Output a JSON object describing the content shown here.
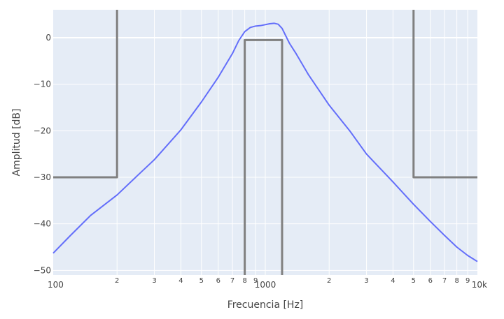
{
  "chart_data": {
    "type": "line",
    "title": "",
    "xlabel": "Frecuencia [Hz]",
    "ylabel": "Amplitud [dB]",
    "x_scale": "log",
    "xlim": [
      100,
      10000
    ],
    "ylim": [
      -51,
      6
    ],
    "grid": true,
    "legend": "none",
    "colors": {
      "plot_bg": "#e5ecf6",
      "grid": "#ffffff",
      "response": "#636efa",
      "template": "#808080"
    },
    "y_ticks": [
      {
        "value": 0,
        "label": "0"
      },
      {
        "value": -10,
        "label": "−10"
      },
      {
        "value": -20,
        "label": "−20"
      },
      {
        "value": -30,
        "label": "−30"
      },
      {
        "value": -40,
        "label": "−40"
      },
      {
        "value": -50,
        "label": "−50"
      }
    ],
    "x_ticks_major": [
      {
        "value": 100,
        "label": "100"
      },
      {
        "value": 1000,
        "label": "1000"
      },
      {
        "value": 10000,
        "label": "10k"
      }
    ],
    "x_ticks_minor": [
      {
        "value": 200,
        "label": "2"
      },
      {
        "value": 300,
        "label": "3"
      },
      {
        "value": 400,
        "label": "4"
      },
      {
        "value": 500,
        "label": "5"
      },
      {
        "value": 600,
        "label": "6"
      },
      {
        "value": 700,
        "label": "7"
      },
      {
        "value": 800,
        "label": "8"
      },
      {
        "value": 900,
        "label": "9"
      },
      {
        "value": 2000,
        "label": "2"
      },
      {
        "value": 3000,
        "label": "3"
      },
      {
        "value": 4000,
        "label": "4"
      },
      {
        "value": 5000,
        "label": "5"
      },
      {
        "value": 6000,
        "label": "6"
      },
      {
        "value": 7000,
        "label": "7"
      },
      {
        "value": 8000,
        "label": "8"
      },
      {
        "value": 9000,
        "label": "9"
      }
    ],
    "series": [
      {
        "kind": "response",
        "x": [
          100,
          120,
          150,
          200,
          250,
          300,
          400,
          500,
          600,
          700,
          750,
          800,
          850,
          900,
          950,
          1000,
          1050,
          1100,
          1150,
          1200,
          1300,
          1400,
          1600,
          2000,
          2500,
          3000,
          4000,
          5000,
          6000,
          7000,
          8000,
          9000,
          10000
        ],
        "y": [
          -46.3,
          -42.6,
          -38.2,
          -33.8,
          -29.6,
          -26.2,
          -19.8,
          -13.8,
          -8.5,
          -3.4,
          -0.6,
          1.3,
          2.2,
          2.5,
          2.6,
          2.8,
          3.0,
          3.1,
          2.9,
          2.0,
          -1.2,
          -3.5,
          -8.0,
          -14.5,
          -20.0,
          -25.0,
          -31.0,
          -35.8,
          -39.5,
          -42.5,
          -45.0,
          -46.8,
          -48.1
        ]
      },
      {
        "kind": "template-low-stopband",
        "x": [
          100,
          200,
          200
        ],
        "y": [
          -30,
          -30,
          6
        ]
      },
      {
        "kind": "template-passband",
        "x": [
          800,
          800,
          1200,
          1200
        ],
        "y": [
          -51,
          -0.5,
          -0.5,
          -51
        ]
      },
      {
        "kind": "template-high-stopband",
        "x": [
          5000,
          5000,
          10000
        ],
        "y": [
          6,
          -30,
          -30
        ]
      }
    ]
  }
}
